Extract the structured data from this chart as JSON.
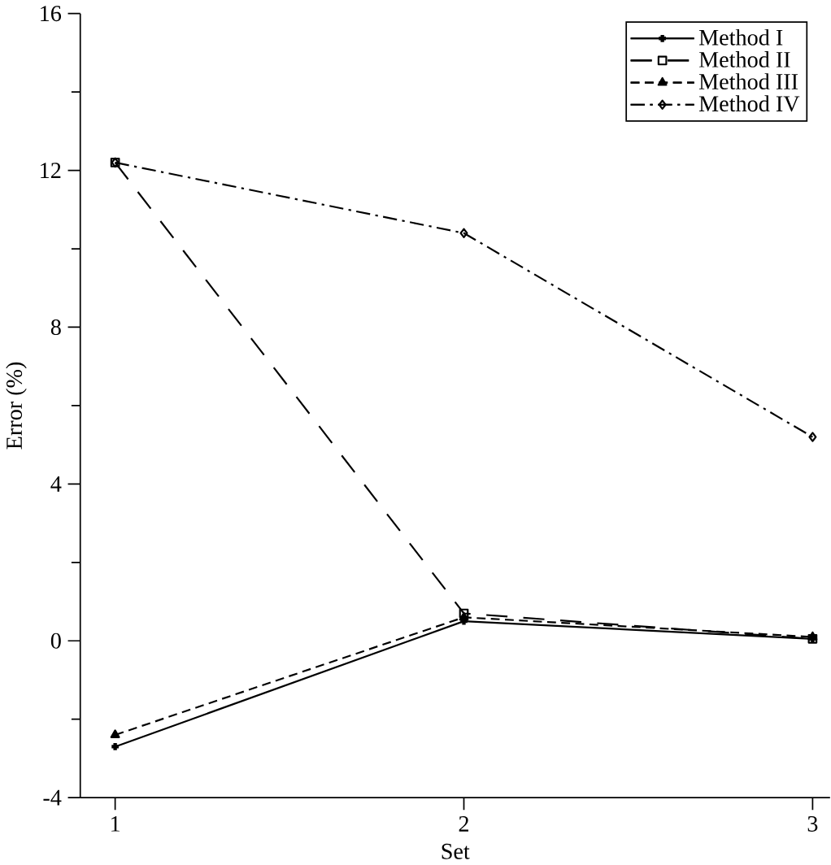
{
  "chart_data": {
    "type": "line",
    "xlabel": "Set",
    "ylabel": "Error (%)",
    "x": [
      1,
      2,
      3
    ],
    "xlim": [
      0.9,
      3.05
    ],
    "xticks": [
      1,
      2,
      3
    ],
    "ylim": [
      -4,
      16
    ],
    "yticks": [
      -4,
      0,
      4,
      8,
      12,
      16
    ],
    "grid": false,
    "legend": "top right",
    "series": [
      {
        "name": "Method I",
        "color": "#000000",
        "marker": "cross",
        "line_style": "solid",
        "values": [
          -2.7,
          0.5,
          0.05
        ]
      },
      {
        "name": "Method II",
        "color": "#000000",
        "marker": "square",
        "line_style": "longdashed",
        "values": [
          12.2,
          0.7,
          0.05
        ]
      },
      {
        "name": "Method III",
        "color": "#000000",
        "marker": "triangle",
        "line_style": "dashed",
        "values": [
          -2.4,
          0.6,
          0.1
        ]
      },
      {
        "name": "Method IV",
        "color": "#000000",
        "marker": "diamond",
        "line_style": "dashdotted",
        "values": [
          12.2,
          10.4,
          5.2
        ]
      }
    ]
  }
}
